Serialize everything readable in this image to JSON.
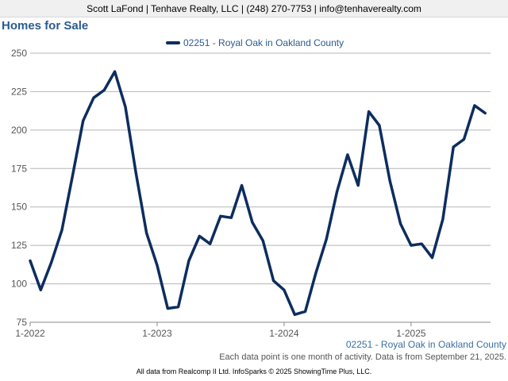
{
  "header": {
    "contact": "Scott LaFond | Tenhave Realty, LLC | (248) 270-7753 | info@tenhaverealty.com"
  },
  "page_title": "Homes for Sale",
  "footer": {
    "series_label": "02251 - Royal Oak in Oakland County",
    "note": "Each data point is one month of activity. Data is from September 21, 2025.",
    "credits": "All data from Realcomp II Ltd. InfoSparks © 2025 ShowingTime Plus, LLC."
  },
  "colors": {
    "line": "#0d2d5e",
    "grid": "#b5b5b5",
    "title": "#2b5b8f"
  },
  "chart_data": {
    "type": "line",
    "title": "",
    "xlabel": "",
    "ylabel": "",
    "ylim": [
      75,
      250
    ],
    "yticks": [
      75,
      100,
      125,
      150,
      175,
      200,
      225,
      250
    ],
    "xticks": [
      "1-2022",
      "1-2023",
      "1-2024",
      "1-2025"
    ],
    "legend": "top-center",
    "grid": true,
    "series": [
      {
        "name": "02251 - Royal Oak in Oakland County",
        "x": [
          "2022-01",
          "2022-02",
          "2022-03",
          "2022-04",
          "2022-05",
          "2022-06",
          "2022-07",
          "2022-08",
          "2022-09",
          "2022-10",
          "2022-11",
          "2022-12",
          "2023-01",
          "2023-02",
          "2023-03",
          "2023-04",
          "2023-05",
          "2023-06",
          "2023-07",
          "2023-08",
          "2023-09",
          "2023-10",
          "2023-11",
          "2023-12",
          "2024-01",
          "2024-02",
          "2024-03",
          "2024-04",
          "2024-05",
          "2024-06",
          "2024-07",
          "2024-08",
          "2024-09",
          "2024-10",
          "2024-11",
          "2024-12",
          "2025-01",
          "2025-02",
          "2025-03",
          "2025-04",
          "2025-05",
          "2025-06",
          "2025-07",
          "2025-08"
        ],
        "values": [
          115,
          96,
          114,
          135,
          170,
          206,
          221,
          226,
          238,
          215,
          172,
          133,
          112,
          84,
          85,
          115,
          131,
          126,
          144,
          143,
          164,
          140,
          128,
          102,
          96,
          80,
          82,
          107,
          129,
          160,
          184,
          164,
          212,
          203,
          167,
          139,
          125,
          126,
          117,
          142,
          189,
          194,
          216,
          211
        ]
      }
    ]
  }
}
